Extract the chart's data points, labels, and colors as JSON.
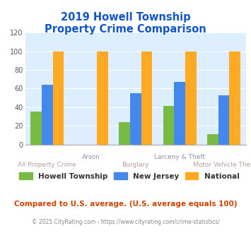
{
  "title": "2019 Howell Township\nProperty Crime Comparison",
  "categories": [
    "All Property Crime",
    "Arson",
    "Burglary",
    "Larceny & Theft",
    "Motor Vehicle Theft"
  ],
  "howell": [
    35,
    0,
    24,
    41,
    11
  ],
  "nj": [
    64,
    0,
    55,
    67,
    53
  ],
  "national": [
    100,
    100,
    100,
    100,
    100
  ],
  "colors": {
    "howell": "#77bb44",
    "nj": "#4488ee",
    "national": "#ffaa22"
  },
  "ylim": [
    0,
    120
  ],
  "yticks": [
    0,
    20,
    40,
    60,
    80,
    100,
    120
  ],
  "title_color": "#1155cc",
  "plot_bg": "#ddeeff",
  "xlabel_color_top": "#9988aa",
  "xlabel_color_bot": "#bb9999",
  "legend_labels": [
    "Howell Township",
    "New Jersey",
    "National"
  ],
  "footer1": "Compared to U.S. average. (U.S. average equals 100)",
  "footer2": "© 2025 CityRating.com - https://www.cityrating.com/crime-statistics/",
  "footer1_color": "#cc4400",
  "footer2_color": "#888888",
  "xlabel_stagger_up": [
    1,
    3
  ],
  "xlabel_stagger_down": [
    0,
    2,
    4
  ],
  "xlabel_texts_up": [
    "Arson",
    "Larceny & Theft"
  ],
  "xlabel_texts_down": [
    "All Property Crime",
    "Burglary",
    "Motor Vehicle Theft"
  ]
}
